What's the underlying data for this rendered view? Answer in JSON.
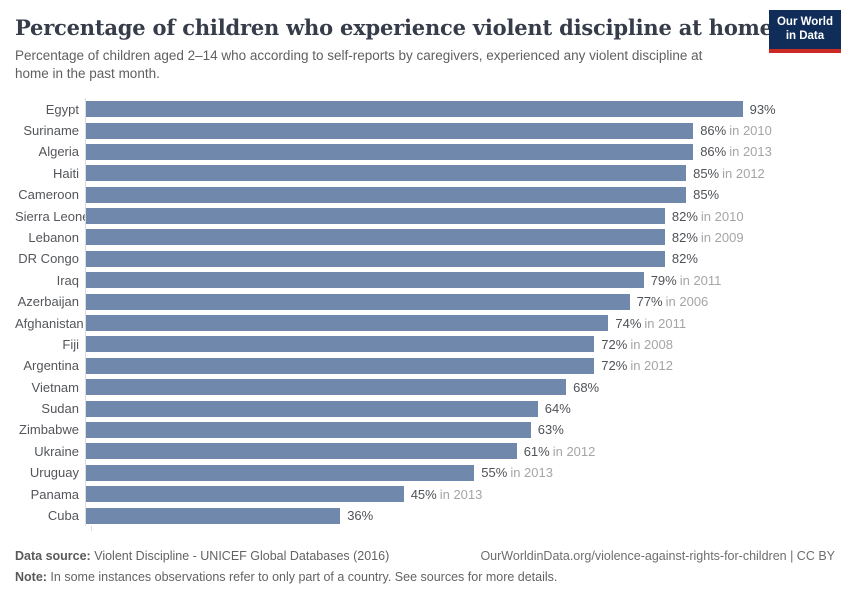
{
  "header": {
    "title": "Percentage of children who experience violent discipline at home",
    "subtitle": "Percentage of children aged 2–14 who according to self-reports by caregivers, experienced any violent discipline at home in the past month."
  },
  "logo": {
    "line1": "Our World",
    "line2": "in Data"
  },
  "colors": {
    "bar": "#7188ad",
    "logo_background": "#102d5a",
    "logo_underline": "#cb2a24",
    "year_text": "#a5a5a5",
    "axis_line": "#dcdcdc"
  },
  "chart_data": {
    "type": "bar",
    "orientation": "horizontal",
    "unit": "%",
    "xlim": [
      0,
      100
    ],
    "grid": false,
    "legend": "none",
    "categories": [
      "Egypt",
      "Suriname",
      "Algeria",
      "Haiti",
      "Cameroon",
      "Sierra Leone",
      "Lebanon",
      "DR Congo",
      "Iraq",
      "Azerbaijan",
      "Afghanistan",
      "Fiji",
      "Argentina",
      "Vietnam",
      "Sudan",
      "Zimbabwe",
      "Ukraine",
      "Uruguay",
      "Panama",
      "Cuba"
    ],
    "values": [
      93,
      86,
      86,
      85,
      85,
      82,
      82,
      82,
      79,
      77,
      74,
      72,
      72,
      68,
      64,
      63,
      61,
      55,
      45,
      36
    ],
    "rows": [
      {
        "country": "Egypt",
        "value": 93,
        "value_label": "93%",
        "year_label": ""
      },
      {
        "country": "Suriname",
        "value": 86,
        "value_label": "86%",
        "year_label": "in 2010"
      },
      {
        "country": "Algeria",
        "value": 86,
        "value_label": "86%",
        "year_label": "in 2013"
      },
      {
        "country": "Haiti",
        "value": 85,
        "value_label": "85%",
        "year_label": "in 2012"
      },
      {
        "country": "Cameroon",
        "value": 85,
        "value_label": "85%",
        "year_label": ""
      },
      {
        "country": "Sierra Leone",
        "value": 82,
        "value_label": "82%",
        "year_label": "in 2010"
      },
      {
        "country": "Lebanon",
        "value": 82,
        "value_label": "82%",
        "year_label": "in 2009"
      },
      {
        "country": "DR Congo",
        "value": 82,
        "value_label": "82%",
        "year_label": ""
      },
      {
        "country": "Iraq",
        "value": 79,
        "value_label": "79%",
        "year_label": "in 2011"
      },
      {
        "country": "Azerbaijan",
        "value": 77,
        "value_label": "77%",
        "year_label": "in 2006"
      },
      {
        "country": "Afghanistan",
        "value": 74,
        "value_label": "74%",
        "year_label": "in 2011"
      },
      {
        "country": "Fiji",
        "value": 72,
        "value_label": "72%",
        "year_label": "in 2008"
      },
      {
        "country": "Argentina",
        "value": 72,
        "value_label": "72%",
        "year_label": "in 2012"
      },
      {
        "country": "Vietnam",
        "value": 68,
        "value_label": "68%",
        "year_label": ""
      },
      {
        "country": "Sudan",
        "value": 64,
        "value_label": "64%",
        "year_label": ""
      },
      {
        "country": "Zimbabwe",
        "value": 63,
        "value_label": "63%",
        "year_label": ""
      },
      {
        "country": "Ukraine",
        "value": 61,
        "value_label": "61%",
        "year_label": "in 2012"
      },
      {
        "country": "Uruguay",
        "value": 55,
        "value_label": "55%",
        "year_label": "in 2013"
      },
      {
        "country": "Panama",
        "value": 45,
        "value_label": "45%",
        "year_label": "in 2013"
      },
      {
        "country": "Cuba",
        "value": 36,
        "value_label": "36%",
        "year_label": ""
      }
    ]
  },
  "footer": {
    "datasource_label": "Data source:",
    "datasource_text": " Violent Discipline - UNICEF Global Databases (2016)",
    "link_text": "OurWorldinData.org/violence-against-rights-for-children | CC BY",
    "note_label": "Note:",
    "note_text": " In some instances observations refer to only part of a country. See sources for more details."
  }
}
